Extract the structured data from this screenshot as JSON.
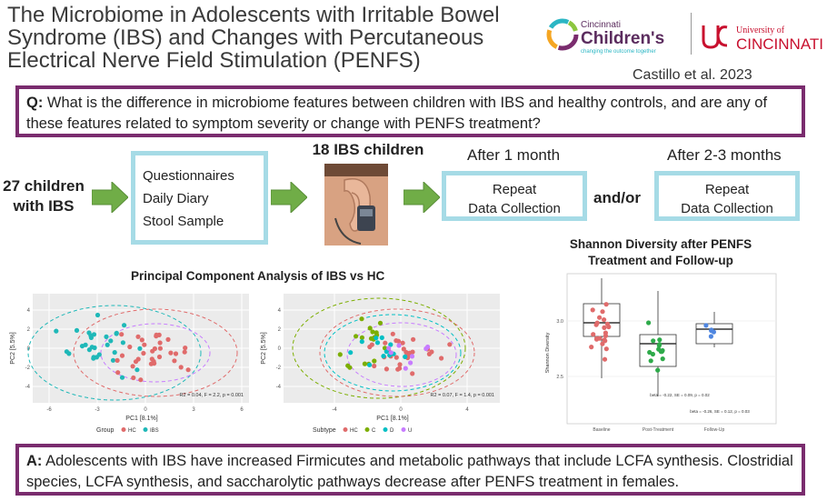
{
  "title": {
    "line1": "The Microbiome in Adolescents with Irritable Bowel",
    "line2": "Syndrome (IBS) and Changes with Percutaneous",
    "line3": "Electrical Nerve Field Stimulation (PENFS)"
  },
  "logos": {
    "cch_small": "Cincinnati",
    "cch_big": "Children's",
    "cch_tagline": "changing the outcome together",
    "uc_small": "University of",
    "uc_big": "CINCINNATI"
  },
  "citation": "Castillo et al. 2023",
  "question": {
    "prefix": "Q:",
    "text": " What is the difference in microbiome features between children with IBS and healthy controls, and are any of these features related to symptom severity or change with PENFS treatment?"
  },
  "flow": {
    "start_line1": "27 children",
    "start_line2": "with IBS",
    "items": [
      "Questionnaires",
      "Daily Diary",
      "Stool Sample"
    ],
    "treated": "18 IBS children",
    "after1": "After 1 month",
    "after2": "After 2-3 months",
    "repeat_line1": "Repeat",
    "repeat_line2": "Data Collection",
    "andor": "and/or"
  },
  "pca": {
    "title": "Principal Component Analysis of IBS vs HC",
    "left": {
      "xlabel": "PC1  [8.1%]",
      "ylabel": "PC2  [5.5%]",
      "stat": "R2 = 0.04, F = 2.2, p = 0.001",
      "legend_title": "Group",
      "legend": [
        "HC",
        "IBS"
      ],
      "xticks": [
        "-6",
        "-3",
        "0",
        "3",
        "6"
      ],
      "yticks": [
        "4",
        "2",
        "0",
        "-2",
        "-4"
      ]
    },
    "right": {
      "xlabel": "PC1  [8.1%]",
      "ylabel": "PC2  [5.5%]",
      "stat": "R2 = 0.07, F = 1.4, p = 0.001",
      "legend_title": "Subtype",
      "legend": [
        "HC",
        "C",
        "D",
        "U"
      ],
      "xticks": [
        "-4",
        "0",
        "4"
      ],
      "yticks": [
        "4",
        "2",
        "0",
        "-2",
        "-4"
      ]
    },
    "colors": {
      "HC": "#e06b6b",
      "IBS": "#1fb8b8",
      "C": "#7cae00",
      "D": "#00bfc4",
      "U": "#c77cff"
    }
  },
  "shannon": {
    "title_line1": "Shannon Diversity after PENFS",
    "title_line2": "Treatment and Follow-up",
    "ylabel": "Shannon Diversity",
    "yticks": [
      "3.0",
      "2.5"
    ],
    "categories": [
      "Baseline",
      "Post-Treatment",
      "Follow-Up"
    ],
    "stat1": "beta = -0.22, SE = 0.09, p = 0.02",
    "stat2": "beta = -0.26, SE = 0.12, p = 0.03",
    "colors": {
      "Baseline": "#e06b6b",
      "Post-Treatment": "#2eaa4a",
      "Follow-Up": "#4f86e0"
    }
  },
  "answer": {
    "prefix": "A:",
    "text": " Adolescents with IBS have increased Firmicutes and metabolic pathways that include LCFA synthesis. Clostridial species, LCFA synthesis, and saccharolytic pathways decrease after PENFS treatment in females."
  }
}
